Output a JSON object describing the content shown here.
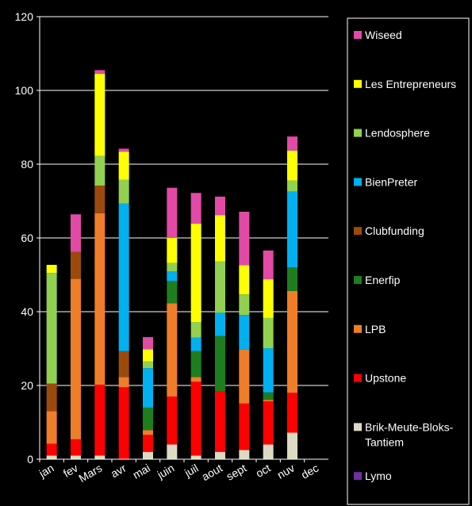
{
  "chart_data": {
    "type": "bar",
    "stacked": true,
    "categories": [
      "jan",
      "fev",
      "Mars",
      "avr",
      "mai",
      "juin",
      "juil",
      "aout",
      "sept",
      "oct",
      "nuv",
      "dec"
    ],
    "ylim": [
      0,
      120
    ],
    "yticks": [
      0,
      20,
      40,
      60,
      80,
      100,
      120
    ],
    "grid": true,
    "legend_position": "right",
    "series": [
      {
        "name": "Lymo",
        "color": "#7030a0",
        "values": [
          0,
          0,
          0,
          0,
          0,
          0,
          0,
          0,
          0,
          0,
          0,
          0
        ]
      },
      {
        "name": "Brik-Meute-Bloks-Tantiem",
        "color": "#ddd9c3",
        "values": [
          1,
          1,
          1,
          0,
          2,
          4,
          1,
          2,
          2.5,
          4,
          7.2,
          0
        ]
      },
      {
        "name": "Upstone",
        "color": "#ff0000",
        "values": [
          3.2,
          4.4,
          19.2,
          19.5,
          4.6,
          13,
          20,
          16.4,
          12.6,
          11.7,
          10.8,
          0
        ]
      },
      {
        "name": "LPB",
        "color": "#f07d28",
        "values": [
          8.8,
          43.5,
          46.5,
          2.8,
          1.3,
          25.3,
          1.3,
          0,
          14.6,
          0.4,
          27.6,
          0
        ]
      },
      {
        "name": "Enerfip",
        "color": "#1e7e1e",
        "values": [
          0,
          0,
          0,
          0,
          6.1,
          6,
          7,
          15,
          0,
          2,
          6.4,
          0
        ]
      },
      {
        "name": "Clubfunding",
        "color": "#9c4a0c",
        "values": [
          7.5,
          7.3,
          7.5,
          7,
          0,
          0,
          0,
          0,
          0,
          0,
          0,
          0
        ]
      },
      {
        "name": "BienPreter",
        "color": "#00b0f0",
        "values": [
          0,
          0,
          0,
          40,
          10.7,
          2.6,
          3.7,
          6.3,
          9.4,
          12,
          20.6,
          0
        ]
      },
      {
        "name": "Lendosphere",
        "color": "#92d050",
        "values": [
          30,
          0,
          8,
          6.5,
          1.8,
          2.3,
          4.2,
          13.9,
          5.6,
          8.2,
          3,
          0
        ]
      },
      {
        "name": "Les Entrepreneurs",
        "color": "#ffff00",
        "values": [
          2.2,
          0,
          22.3,
          7.6,
          3.3,
          6.8,
          26.7,
          12.6,
          7.9,
          10.5,
          8.1,
          0
        ]
      },
      {
        "name": "Wiseed",
        "color": "#e24aa6",
        "values": [
          0,
          10.2,
          1,
          0.8,
          3.3,
          13.6,
          8.3,
          5,
          14.5,
          7.8,
          3.8,
          0
        ]
      }
    ]
  }
}
